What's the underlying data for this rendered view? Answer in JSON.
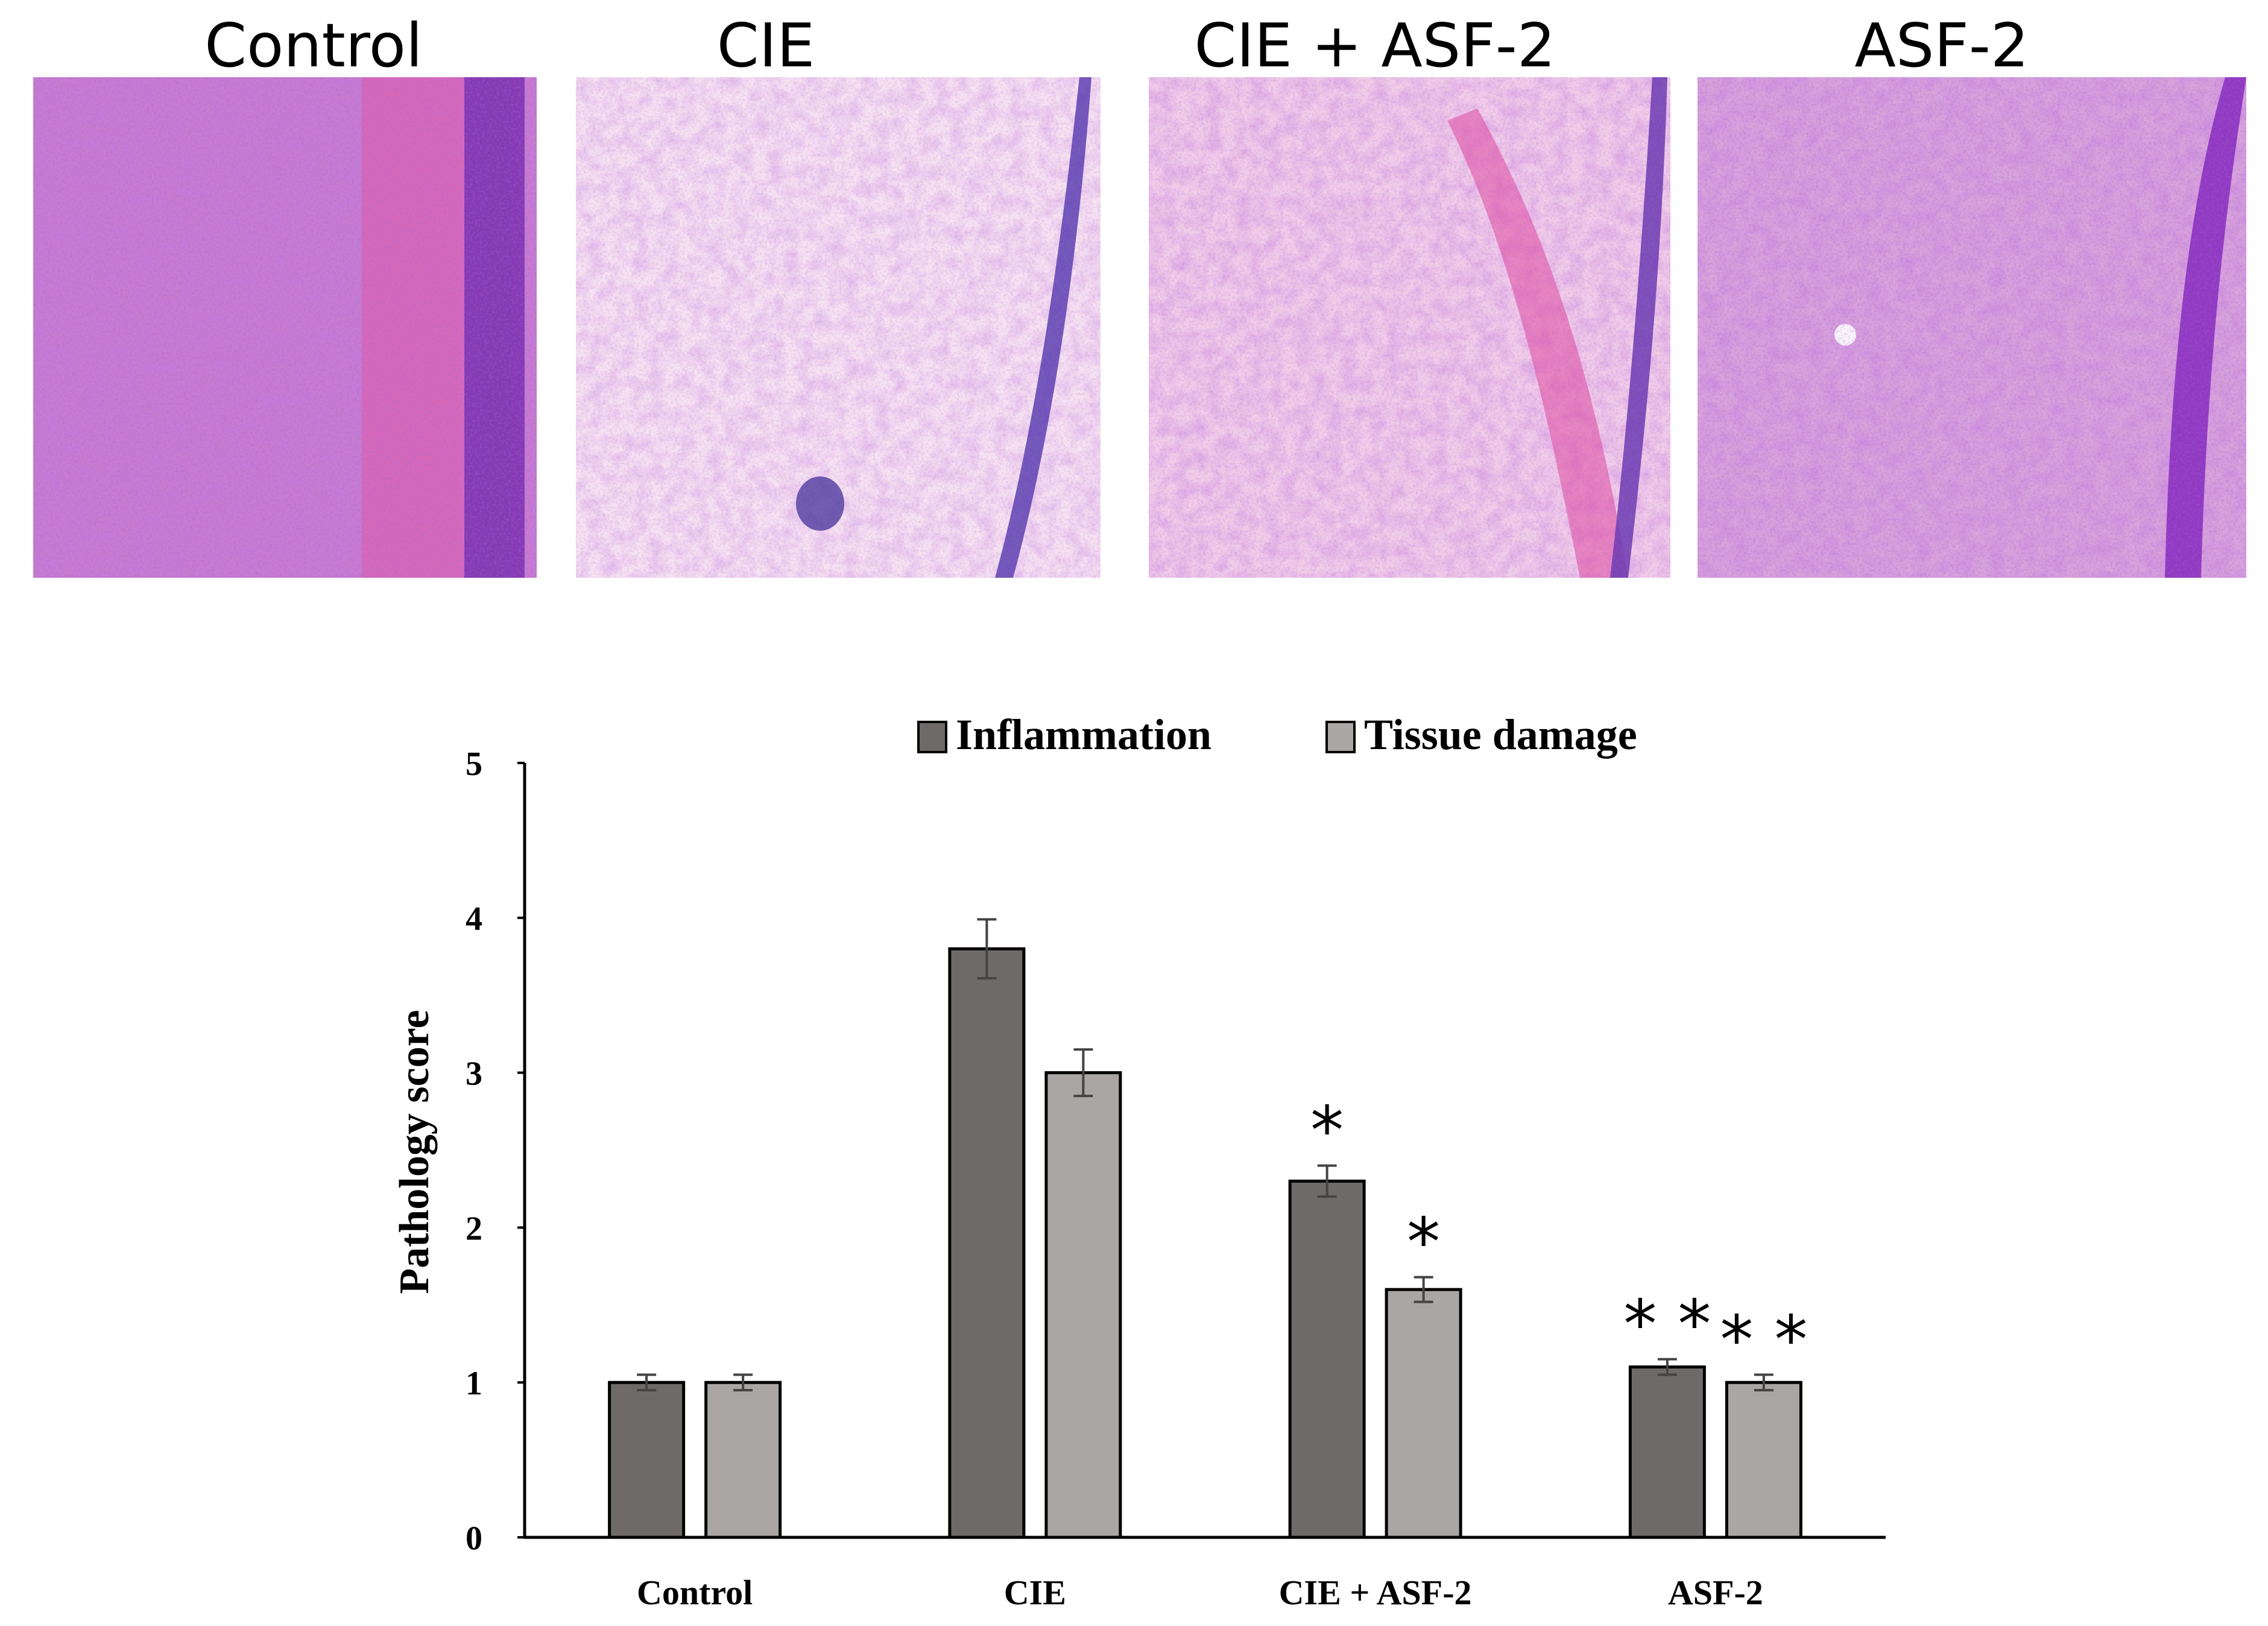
{
  "micrographs": {
    "panels": [
      {
        "label": "Control",
        "palette": [
          "#c77ad0",
          "#9b58c8",
          "#e8a7de",
          "#7a3fb0"
        ]
      },
      {
        "label": "CIE",
        "palette": [
          "#f4d6ee",
          "#e07ad0",
          "#ffffff",
          "#5a4fb5"
        ]
      },
      {
        "label": "CIE + ASF-2",
        "palette": [
          "#f0c5e6",
          "#e66ac4",
          "#ffffff",
          "#8045b5"
        ]
      },
      {
        "label": "ASF-2",
        "palette": [
          "#dba2dc",
          "#c47dd6",
          "#f1c8ea",
          "#8b3ec2"
        ]
      }
    ]
  },
  "chart_data": {
    "type": "bar",
    "categories": [
      "Control",
      "CIE",
      "CIE + ASF-2",
      "ASF-2"
    ],
    "series": [
      {
        "name": "Inflammation",
        "color": "#6e6a69",
        "values": [
          1.0,
          3.8,
          2.3,
          1.1
        ],
        "errors": [
          0.05,
          0.19,
          0.1,
          0.05
        ],
        "significance": [
          "",
          "",
          "*",
          "* *"
        ]
      },
      {
        "name": "Tissue damage",
        "color": "#aaa6a5",
        "values": [
          1.0,
          3.0,
          1.6,
          1.0
        ],
        "errors": [
          0.05,
          0.15,
          0.08,
          0.05
        ],
        "significance": [
          "",
          "",
          "*",
          "* *"
        ]
      }
    ],
    "ylabel": "Pathology score",
    "xlabel": "",
    "ylim": [
      0,
      5
    ],
    "yticks": [
      0,
      1,
      2,
      3,
      4,
      5
    ],
    "legend": "top",
    "grid": false
  }
}
